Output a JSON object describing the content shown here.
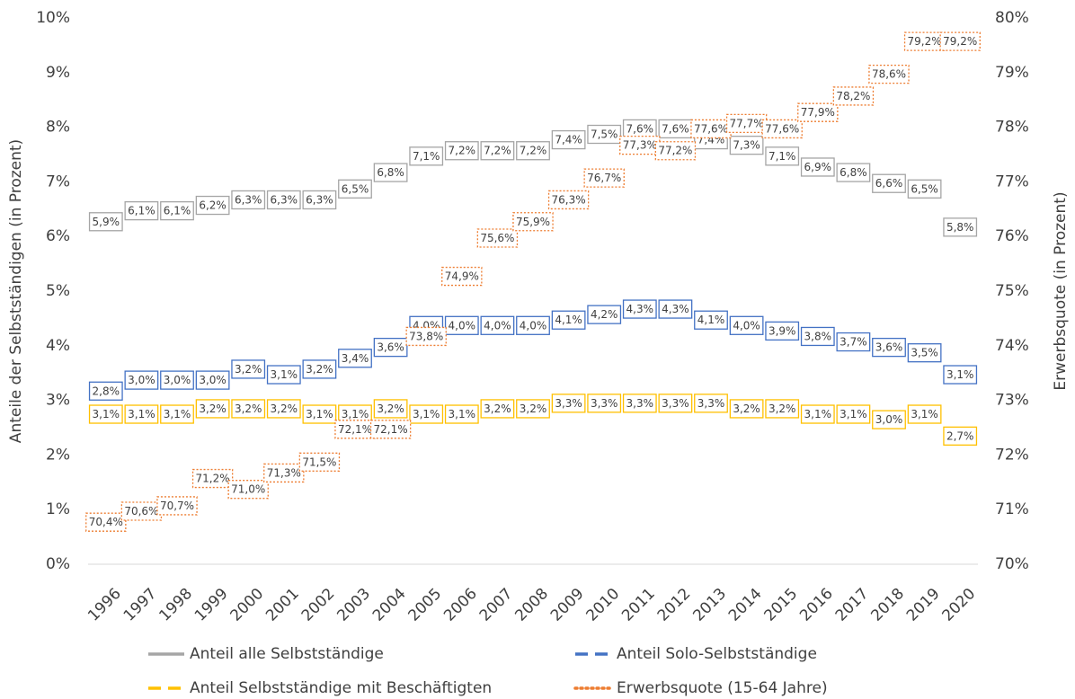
{
  "chart_data": {
    "type": "line",
    "y_label": "Anteile der Selbstständigen (in Prozent)",
    "y2_label": "Erwerbsquote (in Prozent)",
    "categories": [
      "1996",
      "1997",
      "1998",
      "1999",
      "2000",
      "2001",
      "2002",
      "2003",
      "2004",
      "2005",
      "2006",
      "2007",
      "2008",
      "2009",
      "2010",
      "2011",
      "2012",
      "2013",
      "2014",
      "2015",
      "2016",
      "2017",
      "2018",
      "2019",
      "2020"
    ],
    "ylim": [
      0,
      10
    ],
    "yticks": [
      {
        "value": 0,
        "label": "0%"
      },
      {
        "value": 1,
        "label": "1%"
      },
      {
        "value": 2,
        "label": "2%"
      },
      {
        "value": 3,
        "label": "3%"
      },
      {
        "value": 4,
        "label": "4%"
      },
      {
        "value": 5,
        "label": "5%"
      },
      {
        "value": 6,
        "label": "6%"
      },
      {
        "value": 7,
        "label": "7%"
      },
      {
        "value": 8,
        "label": "8%"
      },
      {
        "value": 9,
        "label": "9%"
      },
      {
        "value": 10,
        "label": "10%"
      }
    ],
    "y2lim": [
      70,
      80
    ],
    "y2ticks": [
      {
        "value": 70,
        "label": "70%"
      },
      {
        "value": 71,
        "label": "71%"
      },
      {
        "value": 72,
        "label": "72%"
      },
      {
        "value": 73,
        "label": "73%"
      },
      {
        "value": 74,
        "label": "74%"
      },
      {
        "value": 75,
        "label": "75%"
      },
      {
        "value": 76,
        "label": "76%"
      },
      {
        "value": 77,
        "label": "77%"
      },
      {
        "value": 78,
        "label": "78%"
      },
      {
        "value": 79,
        "label": "79%"
      },
      {
        "value": 80,
        "label": "80%"
      }
    ],
    "grid": false,
    "series": [
      {
        "name": "Anteil alle Selbstständige",
        "color": "#a5a5a5",
        "dash": "solid",
        "values": [
          5.9,
          6.1,
          6.1,
          6.2,
          6.3,
          6.3,
          6.3,
          6.5,
          6.8,
          7.1,
          7.2,
          7.2,
          7.2,
          7.4,
          7.5,
          7.6,
          7.6,
          7.4,
          7.3,
          7.1,
          6.9,
          6.8,
          6.6,
          6.5,
          5.8
        ],
        "value_labels": [
          "5,9%",
          "6,1%",
          "6,1%",
          "6,2%",
          "6,3%",
          "6,3%",
          "6,3%",
          "6,5%",
          "6,8%",
          "7,1%",
          "7,2%",
          "7,2%",
          "7,2%",
          "7,4%",
          "7,5%",
          "7,6%",
          "7,6%",
          "7,4%",
          "7,3%",
          "7,1%",
          "6,9%",
          "6,8%",
          "6,6%",
          "6,5%",
          "5,8%"
        ]
      },
      {
        "name": "Anteil Solo-Selbstständige",
        "color": "#4472c4",
        "dash": "dashed",
        "values": [
          2.8,
          3.0,
          3.0,
          3.0,
          3.2,
          3.1,
          3.2,
          3.4,
          3.6,
          4.0,
          4.0,
          4.0,
          4.0,
          4.1,
          4.2,
          4.3,
          4.3,
          4.1,
          4.0,
          3.9,
          3.8,
          3.7,
          3.6,
          3.5,
          3.1
        ],
        "value_labels": [
          "2,8%",
          "3,0%",
          "3,0%",
          "3,0%",
          "3,2%",
          "3,1%",
          "3,2%",
          "3,4%",
          "3,6%",
          "4,0%",
          "4,0%",
          "4,0%",
          "4,0%",
          "4,1%",
          "4,2%",
          "4,3%",
          "4,3%",
          "4,1%",
          "4,0%",
          "3,9%",
          "3,8%",
          "3,7%",
          "3,6%",
          "3,5%",
          "3,1%"
        ]
      },
      {
        "name": "Anteil Selbstständige mit Beschäftigten",
        "color": "#ffc000",
        "dash": "dashed",
        "values": [
          3.1,
          3.1,
          3.1,
          3.2,
          3.2,
          3.2,
          3.1,
          3.1,
          3.2,
          3.1,
          3.1,
          3.2,
          3.2,
          3.3,
          3.3,
          3.3,
          3.3,
          3.3,
          3.2,
          3.2,
          3.1,
          3.1,
          3.0,
          3.1,
          2.7
        ],
        "value_labels": [
          "3,1%",
          "3,1%",
          "3,1%",
          "3,2%",
          "3,2%",
          "3,2%",
          "3,1%",
          "3,1%",
          "3,2%",
          "3,1%",
          "3,1%",
          "3,2%",
          "3,2%",
          "3,3%",
          "3,3%",
          "3,3%",
          "3,3%",
          "3,3%",
          "3,2%",
          "3,2%",
          "3,1%",
          "3,1%",
          "3,0%",
          "3,1%",
          "2,7%"
        ]
      },
      {
        "name": "Erwerbsquote (15-64 Jahre)",
        "color": "#ed7d31",
        "dash": "dotted",
        "axis": "y2",
        "values": [
          70.4,
          70.6,
          70.7,
          71.2,
          71.0,
          71.3,
          71.5,
          72.1,
          72.1,
          73.8,
          74.9,
          75.6,
          75.9,
          76.3,
          76.7,
          77.3,
          77.2,
          77.6,
          77.7,
          77.6,
          77.9,
          78.2,
          78.6,
          79.2,
          79.2
        ],
        "value_labels": [
          "70,4%",
          "70,6%",
          "70,7%",
          "71,2%",
          "71,0%",
          "71,3%",
          "71,5%",
          "72,1%",
          "72,1%",
          "73,8%",
          "74,9%",
          "75,6%",
          "75,9%",
          "76,3%",
          "76,7%",
          "77,3%",
          "77,2%",
          "77,6%",
          "77,7%",
          "77,6%",
          "77,9%",
          "78,2%",
          "78,6%",
          "79,2%",
          "79,2%"
        ]
      }
    ]
  }
}
